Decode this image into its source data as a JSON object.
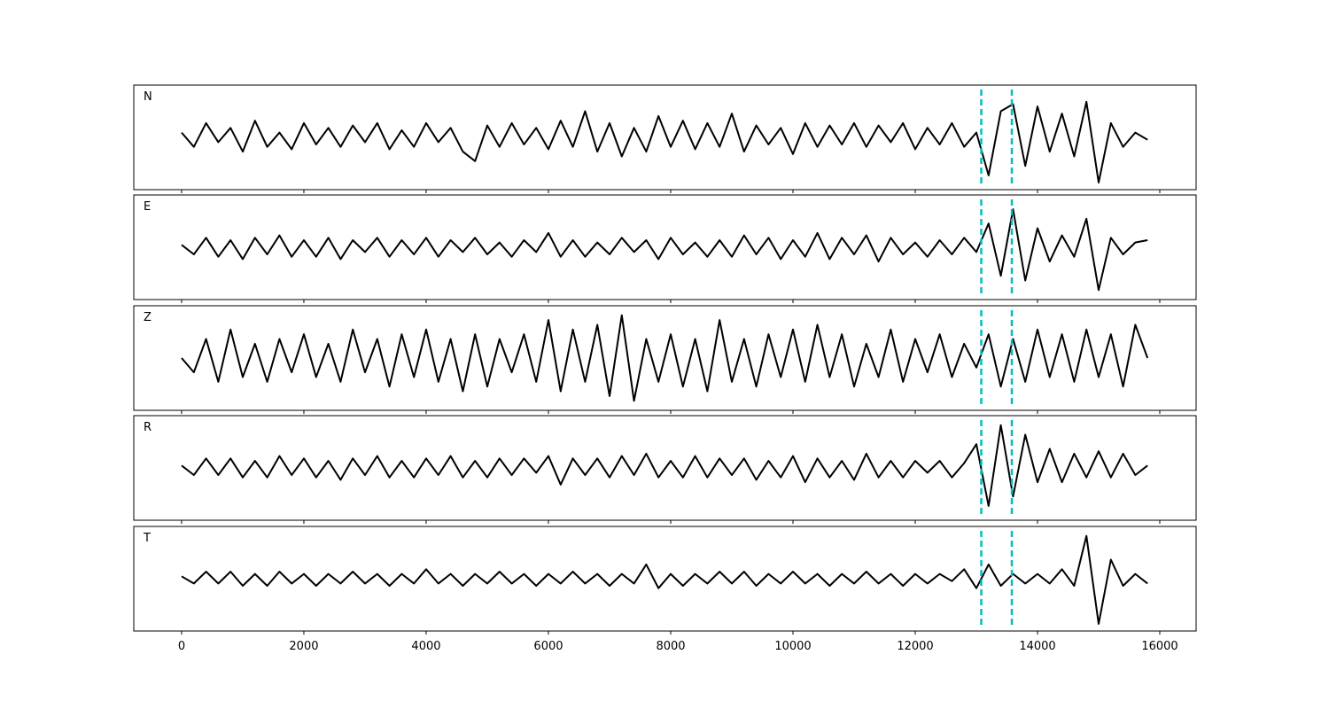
{
  "chart_data": {
    "type": "line",
    "x": [
      0,
      200,
      400,
      600,
      800,
      1000,
      1200,
      1400,
      1600,
      1800,
      2000,
      2200,
      2400,
      2600,
      2800,
      3000,
      3200,
      3400,
      3600,
      3800,
      4000,
      4200,
      4400,
      4600,
      4800,
      5000,
      5200,
      5400,
      5600,
      5800,
      6000,
      6200,
      6400,
      6600,
      6800,
      7000,
      7200,
      7400,
      7600,
      7800,
      8000,
      8200,
      8400,
      8600,
      8800,
      9000,
      9200,
      9400,
      9600,
      9800,
      10000,
      10200,
      10400,
      10600,
      10800,
      11000,
      11200,
      11400,
      11600,
      11800,
      12000,
      12200,
      12400,
      12600,
      12800,
      13000,
      13200,
      13400,
      13600,
      13800,
      14000,
      14200,
      14400,
      14600,
      14800,
      15000,
      15200,
      15400,
      15600,
      15800
    ],
    "xlim": [
      -782,
      16594
    ],
    "xticks": [
      0,
      2000,
      4000,
      6000,
      8000,
      10000,
      12000,
      14000,
      16000
    ],
    "ylim": [
      -1.1,
      1.1
    ],
    "vlines": [
      13080,
      13580
    ],
    "vline_color": "#00bfbf",
    "series": [
      {
        "name": "N",
        "color": "#000000",
        "values": [
          0.1,
          -0.2,
          0.3,
          -0.1,
          0.2,
          -0.3,
          0.35,
          -0.2,
          0.1,
          -0.25,
          0.3,
          -0.15,
          0.2,
          -0.2,
          0.25,
          -0.1,
          0.3,
          -0.25,
          0.15,
          -0.2,
          0.3,
          -0.1,
          0.2,
          -0.3,
          -0.5,
          0.25,
          -0.2,
          0.3,
          -0.15,
          0.2,
          -0.25,
          0.35,
          -0.2,
          0.55,
          -0.3,
          0.3,
          -0.4,
          0.2,
          -0.3,
          0.45,
          -0.2,
          0.35,
          -0.25,
          0.3,
          -0.2,
          0.5,
          -0.3,
          0.25,
          -0.15,
          0.2,
          -0.35,
          0.3,
          -0.2,
          0.25,
          -0.15,
          0.3,
          -0.2,
          0.25,
          -0.1,
          0.3,
          -0.25,
          0.2,
          -0.15,
          0.3,
          -0.2,
          0.1,
          -0.8,
          0.55,
          0.7,
          -0.6,
          0.65,
          -0.3,
          0.5,
          -0.4,
          0.75,
          -0.95,
          0.3,
          -0.2,
          0.1,
          -0.05
        ]
      },
      {
        "name": "E",
        "color": "#000000",
        "values": [
          0.05,
          -0.15,
          0.2,
          -0.2,
          0.15,
          -0.25,
          0.2,
          -0.15,
          0.25,
          -0.2,
          0.15,
          -0.2,
          0.2,
          -0.25,
          0.15,
          -0.1,
          0.2,
          -0.2,
          0.15,
          -0.15,
          0.2,
          -0.2,
          0.15,
          -0.1,
          0.2,
          -0.15,
          0.1,
          -0.2,
          0.15,
          -0.1,
          0.3,
          -0.2,
          0.15,
          -0.2,
          0.1,
          -0.15,
          0.2,
          -0.1,
          0.15,
          -0.25,
          0.2,
          -0.15,
          0.1,
          -0.2,
          0.15,
          -0.2,
          0.25,
          -0.15,
          0.2,
          -0.25,
          0.15,
          -0.2,
          0.3,
          -0.25,
          0.2,
          -0.15,
          0.25,
          -0.3,
          0.2,
          -0.15,
          0.1,
          -0.2,
          0.15,
          -0.15,
          0.2,
          -0.1,
          0.5,
          -0.6,
          0.8,
          -0.7,
          0.4,
          -0.3,
          0.25,
          -0.2,
          0.6,
          -0.9,
          0.2,
          -0.15,
          0.1,
          0.15
        ]
      },
      {
        "name": "Z",
        "color": "#000000",
        "values": [
          0.0,
          -0.3,
          0.4,
          -0.5,
          0.6,
          -0.4,
          0.3,
          -0.5,
          0.4,
          -0.3,
          0.5,
          -0.4,
          0.3,
          -0.5,
          0.6,
          -0.3,
          0.4,
          -0.6,
          0.5,
          -0.4,
          0.6,
          -0.5,
          0.4,
          -0.7,
          0.5,
          -0.6,
          0.4,
          -0.3,
          0.5,
          -0.5,
          0.8,
          -0.7,
          0.6,
          -0.5,
          0.7,
          -0.8,
          0.9,
          -0.9,
          0.4,
          -0.5,
          0.5,
          -0.6,
          0.4,
          -0.7,
          0.8,
          -0.5,
          0.4,
          -0.6,
          0.5,
          -0.4,
          0.6,
          -0.5,
          0.7,
          -0.4,
          0.5,
          -0.6,
          0.3,
          -0.4,
          0.6,
          -0.5,
          0.4,
          -0.3,
          0.5,
          -0.4,
          0.3,
          -0.2,
          0.5,
          -0.6,
          0.4,
          -0.5,
          0.6,
          -0.4,
          0.5,
          -0.5,
          0.6,
          -0.4,
          0.5,
          -0.6,
          0.7,
          0.0
        ]
      },
      {
        "name": "R",
        "color": "#000000",
        "values": [
          0.05,
          -0.15,
          0.2,
          -0.15,
          0.2,
          -0.2,
          0.15,
          -0.2,
          0.25,
          -0.15,
          0.2,
          -0.2,
          0.15,
          -0.25,
          0.2,
          -0.15,
          0.25,
          -0.2,
          0.15,
          -0.2,
          0.2,
          -0.15,
          0.25,
          -0.2,
          0.15,
          -0.2,
          0.2,
          -0.15,
          0.2,
          -0.1,
          0.25,
          -0.35,
          0.2,
          -0.15,
          0.2,
          -0.2,
          0.25,
          -0.15,
          0.3,
          -0.2,
          0.15,
          -0.2,
          0.25,
          -0.2,
          0.2,
          -0.15,
          0.2,
          -0.25,
          0.15,
          -0.2,
          0.25,
          -0.3,
          0.2,
          -0.2,
          0.15,
          -0.25,
          0.3,
          -0.2,
          0.15,
          -0.2,
          0.15,
          -0.1,
          0.15,
          -0.2,
          0.1,
          0.5,
          -0.8,
          0.9,
          -0.6,
          0.7,
          -0.3,
          0.4,
          -0.3,
          0.3,
          -0.2,
          0.35,
          -0.2,
          0.3,
          -0.15,
          0.05
        ]
      },
      {
        "name": "T",
        "color": "#000000",
        "values": [
          0.05,
          -0.1,
          0.15,
          -0.1,
          0.15,
          -0.15,
          0.1,
          -0.15,
          0.15,
          -0.1,
          0.1,
          -0.15,
          0.1,
          -0.1,
          0.15,
          -0.1,
          0.1,
          -0.15,
          0.1,
          -0.1,
          0.2,
          -0.1,
          0.1,
          -0.15,
          0.1,
          -0.1,
          0.15,
          -0.1,
          0.1,
          -0.15,
          0.1,
          -0.1,
          0.15,
          -0.1,
          0.1,
          -0.15,
          0.1,
          -0.1,
          0.3,
          -0.2,
          0.1,
          -0.15,
          0.1,
          -0.1,
          0.15,
          -0.1,
          0.15,
          -0.15,
          0.1,
          -0.1,
          0.15,
          -0.1,
          0.1,
          -0.15,
          0.1,
          -0.1,
          0.15,
          -0.1,
          0.1,
          -0.15,
          0.1,
          -0.1,
          0.1,
          -0.05,
          0.2,
          -0.2,
          0.3,
          -0.15,
          0.1,
          -0.1,
          0.1,
          -0.1,
          0.2,
          -0.15,
          0.9,
          -0.95,
          0.4,
          -0.15,
          0.1,
          -0.1
        ]
      }
    ]
  }
}
